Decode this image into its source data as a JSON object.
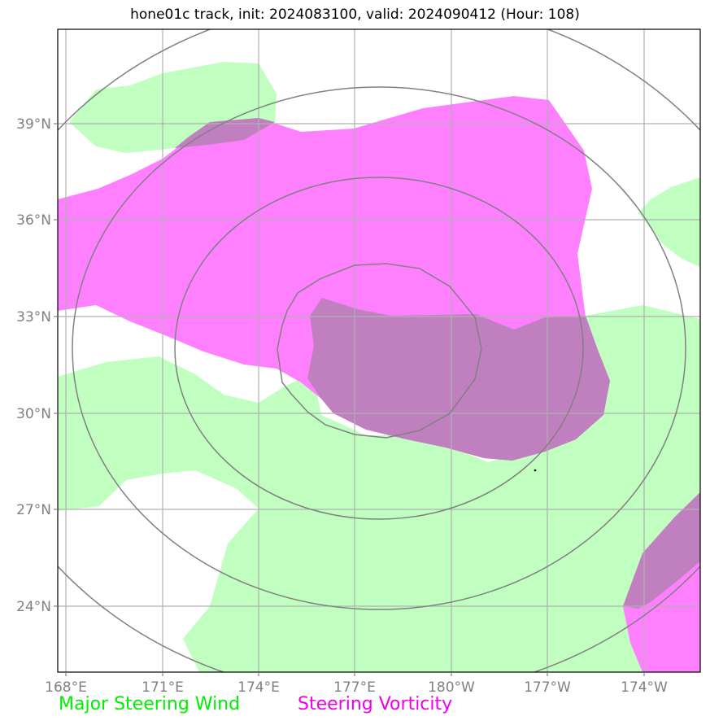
{
  "title": "hone01c track, init: 2024083100, valid: 2024090412 (Hour: 108)",
  "map": {
    "lat_ticks": [
      "39°N",
      "36°N",
      "33°N",
      "30°N",
      "27°N",
      "24°N"
    ],
    "lon_ticks": [
      "168°E",
      "171°E",
      "174°E",
      "177°E",
      "180°W",
      "177°W",
      "174°W"
    ],
    "colors": {
      "steering_wind": "#c0ffc0",
      "steering_vorticity": "#ff80ff",
      "overlap": "#c080c0",
      "rings": "#808080",
      "grid": "#b0b0b0"
    }
  },
  "legend": {
    "wind": "Major Steering Wind",
    "vorticity": "Steering Vorticity"
  }
}
